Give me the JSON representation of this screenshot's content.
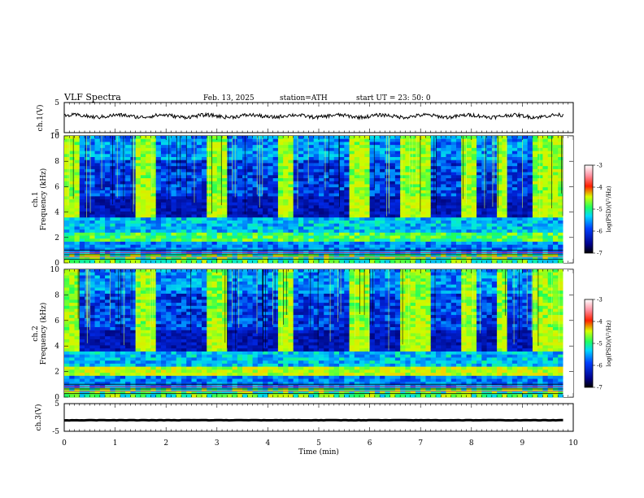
{
  "header": {
    "title": "VLF  Spectra",
    "date": "Feb. 13, 2025",
    "station": "station=ATH",
    "start_ut": "start  UT  =    23: 50: 0"
  },
  "chart_data": [
    {
      "type": "line",
      "panel": "ch1-waveform",
      "ylabel": "ch.1(V)",
      "ylim": [
        -5,
        5
      ],
      "yticks": [
        "5",
        "-5"
      ],
      "xlim": [
        0,
        10
      ],
      "trace_level_v": 0.5
    },
    {
      "type": "heatmap",
      "panel": "ch1-spectrogram",
      "ylabel_line1": "ch.1",
      "ylabel_line2": "Frequency (kHz)",
      "ylim": [
        0,
        10
      ],
      "yticks": [
        "0",
        "2",
        "4",
        "6",
        "8",
        "10"
      ],
      "xlim": [
        0,
        9.8
      ],
      "colorbar": {
        "label": "log(PSD)(V²/Hz)",
        "range": [
          -7,
          -3
        ],
        "ticks": [
          "-3",
          "-4",
          "-5",
          "-6",
          "-7"
        ]
      }
    },
    {
      "type": "heatmap",
      "panel": "ch2-spectrogram",
      "ylabel_line1": "ch.2",
      "ylabel_line2": "Frequency (kHz)",
      "ylim": [
        0,
        10
      ],
      "yticks": [
        "0",
        "2",
        "4",
        "6",
        "8",
        "10"
      ],
      "xlim": [
        0,
        9.8
      ],
      "colorbar": {
        "label": "log(PSD)(V²/Hz)",
        "range": [
          -7,
          -3
        ],
        "ticks": [
          "-3",
          "-4",
          "-5",
          "-6",
          "-7"
        ]
      }
    },
    {
      "type": "line",
      "panel": "ch3-waveform",
      "ylabel": "ch.3(V)",
      "ylim": [
        -5,
        5
      ],
      "yticks": [
        "5",
        "-5"
      ],
      "xlim": [
        0,
        10
      ],
      "trace_level_v": -1.0
    }
  ],
  "xaxis": {
    "label": "Time  (min)",
    "ticks": [
      "0",
      "1",
      "2",
      "3",
      "4",
      "5",
      "6",
      "7",
      "8",
      "9",
      "10"
    ]
  },
  "colors": {
    "low": "#00007a",
    "mid_low": "#0050ff",
    "mid": "#00d8ff",
    "mid_high": "#40ff40",
    "high": "#ffff00",
    "max": "#ff0000"
  }
}
